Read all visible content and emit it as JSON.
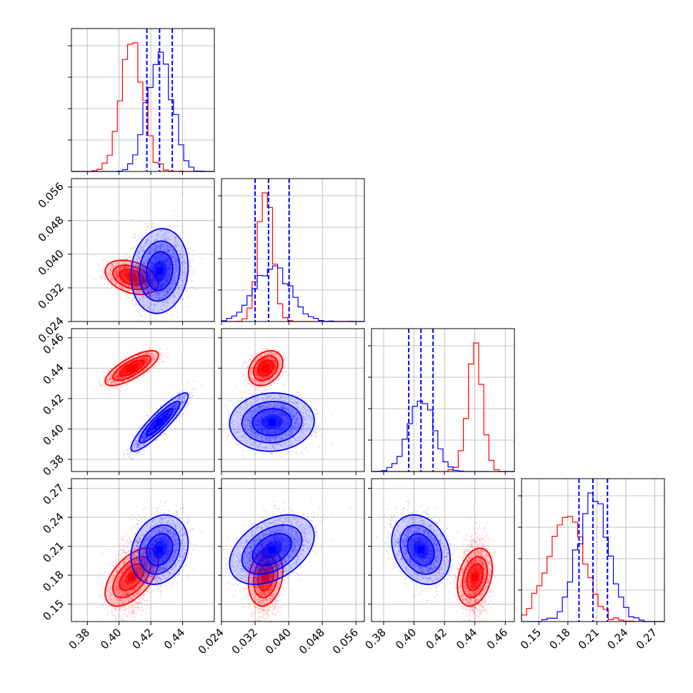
{
  "chart_data": {
    "type": "corner",
    "description_parameters": 4,
    "colors": {
      "A": "#ff0000",
      "B": "#0000ff"
    },
    "grid": true,
    "parameters": [
      {
        "id": "p1",
        "range": [
          0.37,
          0.46
        ],
        "ticks": [
          0.38,
          0.4,
          0.42,
          0.44
        ],
        "tick_labels": [
          "0.38",
          "0.40",
          "0.42",
          "0.44"
        ],
        "mean": {
          "A": 0.408,
          "B": 0.4255
        },
        "sd": {
          "A": 0.007,
          "B": 0.0075
        },
        "B_quantile_lines": [
          0.4175,
          0.4255,
          0.4335
        ]
      },
      {
        "id": "p2",
        "range": [
          0.024,
          0.058
        ],
        "ticks": [
          0.024,
          0.032,
          0.04,
          0.048,
          0.056
        ],
        "tick_labels": [
          "0.024",
          "0.032",
          "0.040",
          "0.048",
          "0.056"
        ],
        "mean": {
          "A": 0.0345,
          "B": 0.036
        },
        "sd": {
          "A": 0.0017,
          "B": 0.0042
        },
        "B_quantile_lines": [
          0.032,
          0.0352,
          0.0401
        ]
      },
      {
        "id": "p3",
        "range": [
          0.372,
          0.466
        ],
        "ticks": [
          0.38,
          0.4,
          0.42,
          0.44,
          0.46
        ],
        "tick_labels": [
          "0.38",
          "0.40",
          "0.42",
          "0.44",
          "0.46"
        ],
        "mean": {
          "A": 0.44,
          "B": 0.4045
        },
        "sd": {
          "A": 0.0048,
          "B": 0.008
        },
        "B_quantile_lines": [
          0.3965,
          0.4045,
          0.4125
        ]
      },
      {
        "id": "p4",
        "range": [
          0.132,
          0.28
        ],
        "ticks": [
          0.15,
          0.18,
          0.21,
          0.24,
          0.27
        ],
        "tick_labels": [
          "0.15",
          "0.18",
          "0.21",
          "0.24",
          "0.27"
        ],
        "mean": {
          "A": 0.178,
          "B": 0.2065
        },
        "sd": {
          "A": 0.0125,
          "B": 0.015
        },
        "B_quantile_lines": [
          0.1915,
          0.206,
          0.221
        ]
      }
    ],
    "correlations": {
      "A": {
        "0-1": -0.35,
        "0-2": 0.75,
        "1-2": 0.3,
        "0-3": 0.55,
        "1-3": 0.2,
        "2-3": 0.3
      },
      "B": {
        "0-1": 0.1,
        "0-2": 0.9,
        "1-2": 0.05,
        "0-3": 0.2,
        "1-3": 0.4,
        "2-3": -0.25
      }
    }
  }
}
